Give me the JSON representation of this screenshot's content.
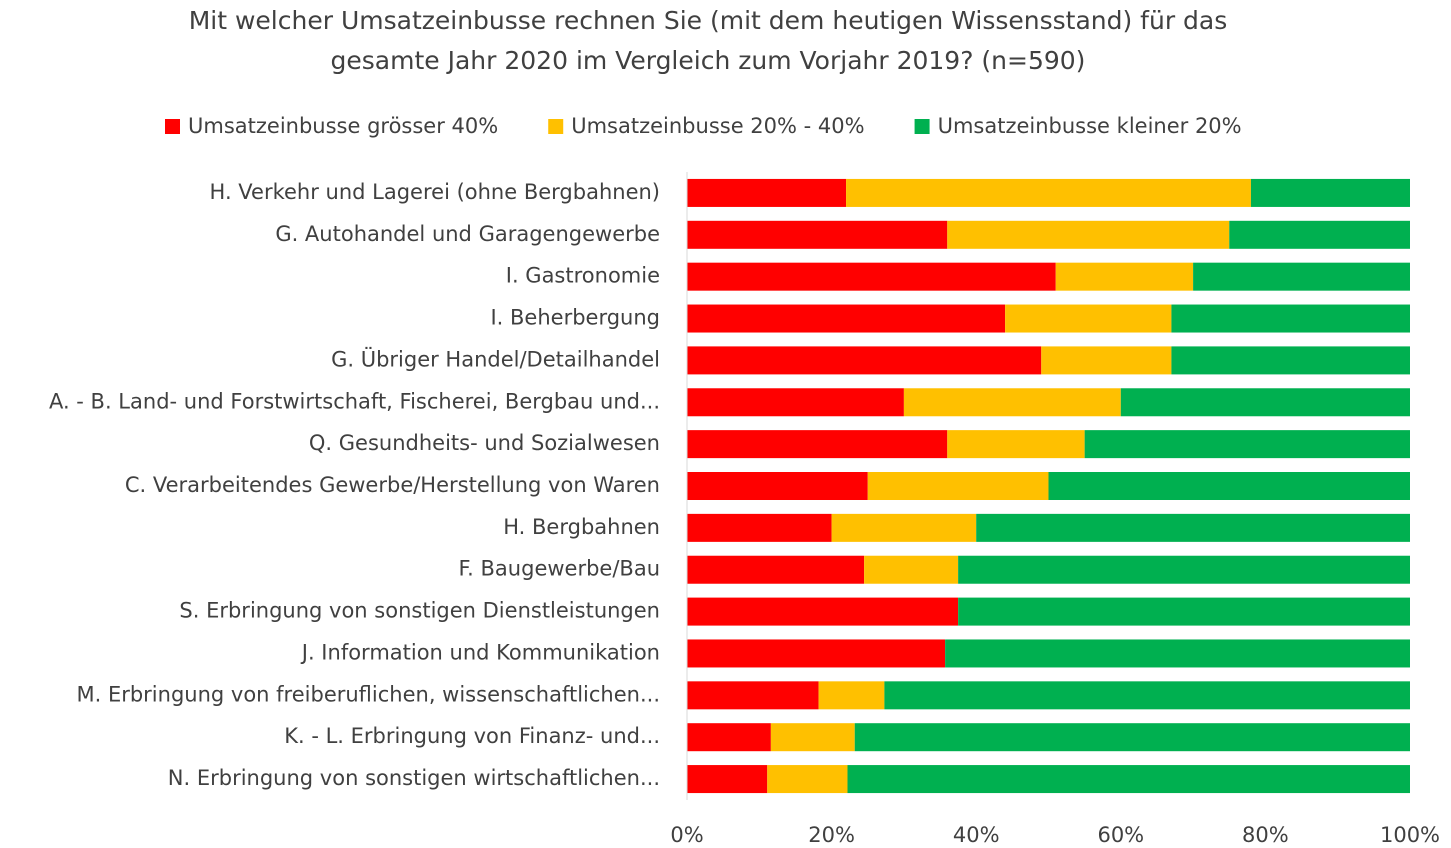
{
  "chart_data": {
    "type": "stacked_barh",
    "title": [
      "Mit welcher Umsatzeinbusse rechnen Sie (mit dem heutigen Wissensstand) für das",
      "gesamte Jahr 2020 im Vergleich zum Vorjahr 2019? (n=590)"
    ],
    "categories": [
      "H. Verkehr und Lagerei (ohne Bergbahnen)",
      "G. Autohandel und Garagengewerbe",
      "I. Gastronomie",
      "I. Beherbergung",
      "G. Übriger Handel/Detailhandel",
      "A. - B. Land- und Forstwirtschaft, Fischerei, Bergbau und...",
      "Q. Gesundheits- und Sozialwesen",
      "C. Verarbeitendes Gewerbe/Herstellung von Waren",
      "H. Bergbahnen",
      "F. Baugewerbe/Bau",
      "S. Erbringung von sonstigen Dienstleistungen",
      "J. Information und Kommunikation",
      "M. Erbringung von freiberuflichen, wissenschaftlichen...",
      "K. - L. Erbringung von Finanz- und...",
      "N. Erbringung von sonstigen wirtschaftlichen..."
    ],
    "series": [
      {
        "name": "Umsatzeinbusse grösser 40%",
        "color": "#ff0000",
        "values": [
          22,
          36,
          51,
          44,
          49,
          30,
          36,
          25,
          20,
          24.5,
          37.5,
          35.7,
          18.2,
          11.6,
          11.1
        ]
      },
      {
        "name": "Umsatzeinbusse 20% - 40%",
        "color": "#ffc000",
        "values": [
          56,
          39,
          19,
          23,
          18,
          30,
          19,
          25,
          20,
          13,
          0,
          0,
          9.1,
          11.6,
          11.1
        ]
      },
      {
        "name": "Umsatzeinbusse kleiner 20%",
        "color": "#00b050",
        "values": [
          22,
          25,
          30,
          33,
          33,
          40,
          45,
          50,
          60,
          62.5,
          62.5,
          64.3,
          72.7,
          76.8,
          77.8
        ]
      }
    ],
    "xlim": [
      0,
      100
    ],
    "xticks": [
      {
        "value": 0,
        "label": "0%"
      },
      {
        "value": 20,
        "label": "20%"
      },
      {
        "value": 40,
        "label": "40%"
      },
      {
        "value": 60,
        "label": "60%"
      },
      {
        "value": 80,
        "label": "80%"
      },
      {
        "value": 100,
        "label": "100%"
      }
    ],
    "legend": "top"
  }
}
